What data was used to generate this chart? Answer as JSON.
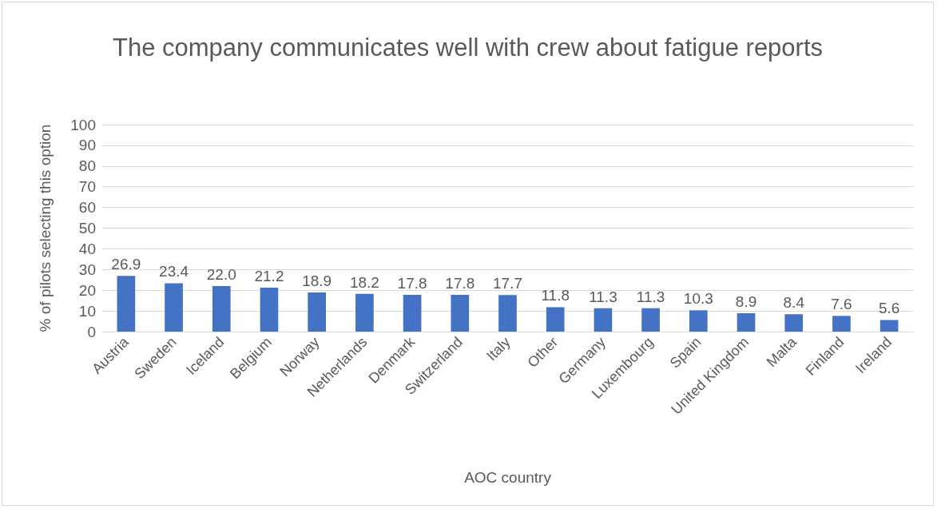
{
  "chart_data": {
    "type": "bar",
    "title": "The company communicates well with crew about fatigue reports",
    "xlabel": "AOC country",
    "ylabel": "% of pilots selecting this option",
    "categories": [
      "Austria",
      "Sweden",
      "Iceland",
      "Belgium",
      "Norway",
      "Netherlands",
      "Denmark",
      "Switzerland",
      "Italy",
      "Other",
      "Germany",
      "Luxembourg",
      "Spain",
      "United Kingdom",
      "Malta",
      "Finland",
      "Ireland"
    ],
    "values": [
      26.9,
      23.4,
      22.0,
      21.2,
      18.9,
      18.2,
      17.8,
      17.8,
      17.7,
      11.8,
      11.3,
      11.3,
      10.3,
      8.9,
      8.4,
      7.6,
      5.6
    ],
    "value_labels": [
      "26.9",
      "23.4",
      "22.0",
      "21.2",
      "18.9",
      "18.2",
      "17.8",
      "17.8",
      "17.7",
      "11.8",
      "11.3",
      "11.3",
      "10.3",
      "8.9",
      "8.4",
      "7.6",
      "5.6"
    ],
    "color": "#4472c4",
    "ylim": [
      0,
      100
    ],
    "yticks": [
      0,
      10,
      20,
      30,
      40,
      50,
      60,
      70,
      80,
      90,
      100
    ],
    "grid": "y"
  }
}
